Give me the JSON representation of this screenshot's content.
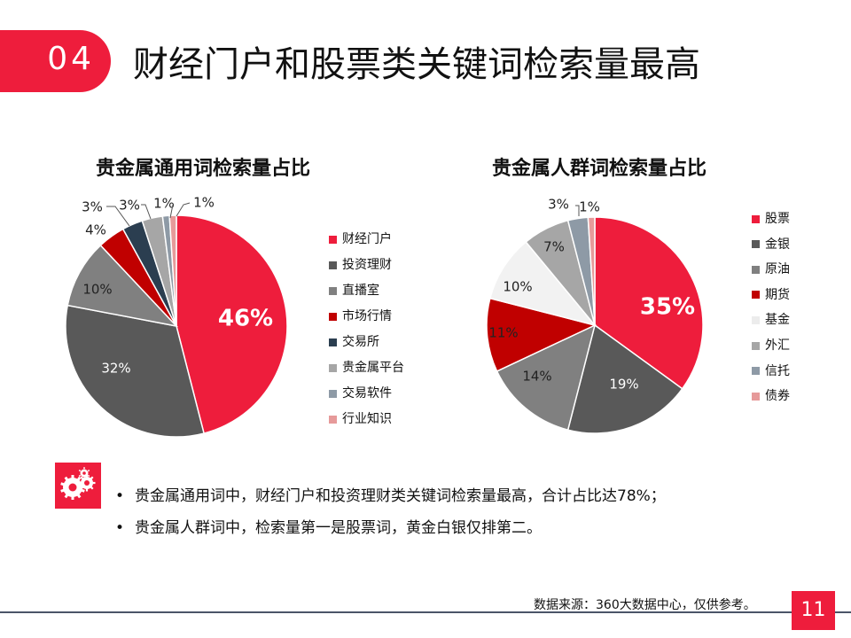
{
  "header": {
    "number": "04",
    "title": "财经门户和股票类关键词检索量最高"
  },
  "colors": {
    "accent": "#ee1d3c",
    "footer_line": "#4a5468"
  },
  "chart_data": [
    {
      "type": "pie",
      "title": "贵金属通用词检索量占比",
      "legend_placement": "right",
      "categories": [
        "财经门户",
        "投资理财",
        "直播室",
        "市场行情",
        "交易所",
        "贵金属平台",
        "交易软件",
        "行业知识"
      ],
      "values": [
        46,
        32,
        10,
        4,
        3,
        3,
        1,
        1
      ],
      "labels": [
        "46%",
        "32%",
        "10%",
        "4%",
        "3%",
        "3%",
        "1%",
        "1%"
      ],
      "colors": [
        "#ee1d3c",
        "#595959",
        "#808080",
        "#c00000",
        "#2b3e50",
        "#a6a6a6",
        "#8e9aa6",
        "#e69a9a"
      ]
    },
    {
      "type": "pie",
      "title": "贵金属人群词检索量占比",
      "legend_placement": "right",
      "categories": [
        "股票",
        "金银",
        "原油",
        "期货",
        "基金",
        "外汇",
        "信托",
        "债券"
      ],
      "values": [
        35,
        19,
        14,
        11,
        10,
        7,
        3,
        1
      ],
      "labels": [
        "35%",
        "19%",
        "14%",
        "11%",
        "10%",
        "7%",
        "3%",
        "1%"
      ],
      "colors": [
        "#ee1d3c",
        "#595959",
        "#808080",
        "#c00000",
        "#f2f2f2",
        "#a6a6a6",
        "#8e9aa6",
        "#e69a9a"
      ]
    }
  ],
  "bullets": [
    "贵金属通用词中，财经门户和投资理财类关键词检索量最高，合计占比达78%；",
    "贵金属人群词中，检索量第一是股票词，黄金白银仅排第二。"
  ],
  "bullet_icon": "gears-icon",
  "footer": {
    "source": "数据来源：360大数据中心，仅供参考。",
    "page": "11"
  }
}
